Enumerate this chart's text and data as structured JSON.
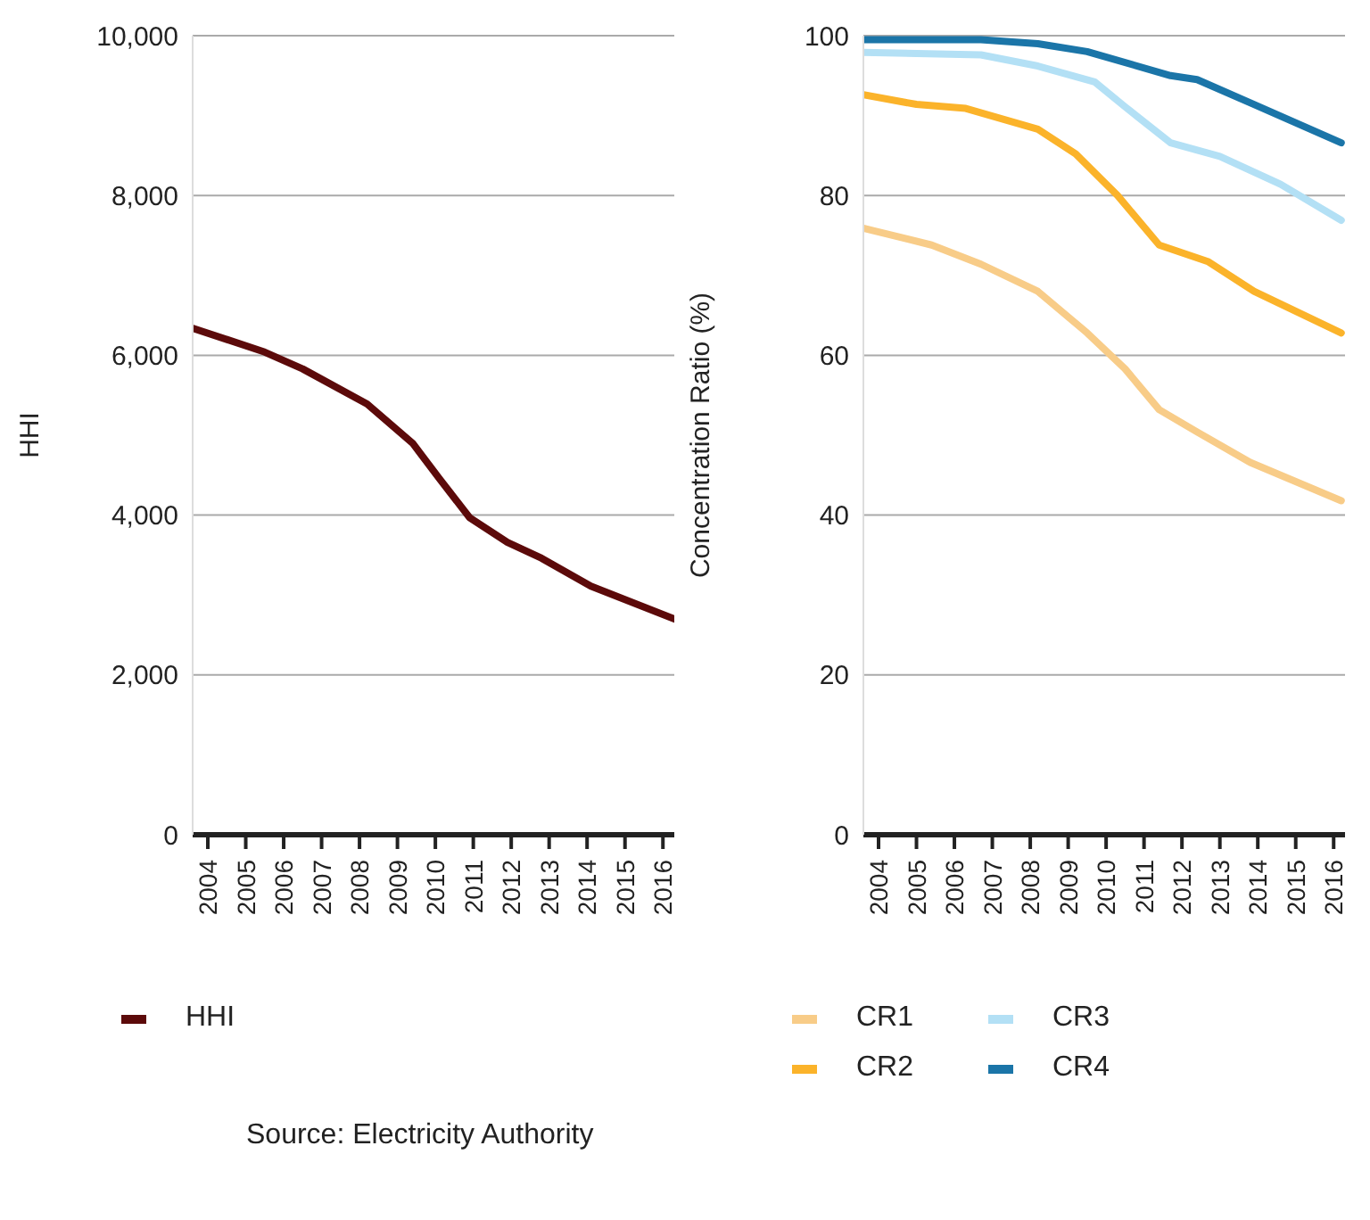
{
  "chart_data": [
    {
      "type": "line",
      "ylabel": "HHI",
      "xlim": [
        2003.6,
        2016.3
      ],
      "xticks": [
        2004,
        2005,
        2006,
        2007,
        2008,
        2009,
        2010,
        2011,
        2012,
        2013,
        2014,
        2015,
        2016
      ],
      "ylim": [
        0,
        10000
      ],
      "yticks": [
        0,
        {
          "value": 2000,
          "label": "2,000"
        },
        {
          "value": 4000,
          "label": "4,000"
        },
        {
          "value": 6000,
          "label": "6,000"
        },
        {
          "value": 8000,
          "label": "8,000"
        },
        {
          "value": 10000,
          "label": "10,000"
        }
      ],
      "grid": "y",
      "legend": "bottom",
      "marker": "none",
      "annotations": [
        "Source: Electricity Authority"
      ],
      "series": [
        {
          "name": "HHI",
          "color": "#5c0a0a",
          "x": [
            2003.6,
            2005.5,
            2006.5,
            2008.2,
            2009.4,
            2010.1,
            2010.9,
            2011.9,
            2012.8,
            2014.1,
            2016.3
          ],
          "values": [
            6340,
            6040,
            5830,
            5390,
            4900,
            4460,
            3970,
            3660,
            3460,
            3110,
            2700
          ]
        }
      ]
    },
    {
      "type": "line",
      "ylabel": "Concentration Ratio (%)",
      "xlim": [
        2003.6,
        2016.3
      ],
      "xticks": [
        2004,
        2005,
        2006,
        2007,
        2008,
        2009,
        2010,
        2011,
        2012,
        2013,
        2014,
        2015,
        2016
      ],
      "ylim": [
        0,
        100
      ],
      "yticks": [
        0,
        20,
        40,
        60,
        80,
        100
      ],
      "grid": "y",
      "legend": "bottom",
      "marker": "none",
      "series": [
        {
          "name": "CR1",
          "color": "#f8cc88",
          "x": [
            2003.6,
            2005.4,
            2006.7,
            2008.2,
            2009.5,
            2010.5,
            2011.4,
            2012.4,
            2013.8,
            2016.2
          ],
          "values": [
            75.9,
            73.8,
            71.4,
            68,
            62.8,
            58.3,
            53.2,
            50.4,
            46.6,
            41.8
          ]
        },
        {
          "name": "CR2",
          "color": "#fbb32a",
          "x": [
            2003.6,
            2005.0,
            2006.3,
            2008.2,
            2009.2,
            2010.3,
            2011.4,
            2012.7,
            2013.9,
            2016.2
          ],
          "values": [
            92.6,
            91.4,
            90.9,
            88.3,
            85.2,
            80,
            73.8,
            71.7,
            68,
            62.8
          ]
        },
        {
          "name": "CR3",
          "color": "#b3e0f5",
          "x": [
            2003.6,
            2006.7,
            2008.2,
            2009.7,
            2010.5,
            2011.7,
            2013.0,
            2014.6,
            2016.2
          ],
          "values": [
            97.9,
            97.6,
            96.2,
            94.2,
            91.1,
            86.6,
            84.9,
            81.4,
            76.9
          ]
        },
        {
          "name": "CR4",
          "color": "#1b75a8",
          "x": [
            2003.6,
            2006.7,
            2008.2,
            2009.5,
            2011.7,
            2012.4,
            2013.9,
            2016.2
          ],
          "values": [
            99.5,
            99.5,
            99,
            98,
            95,
            94.5,
            91.4,
            86.6
          ]
        }
      ]
    }
  ]
}
